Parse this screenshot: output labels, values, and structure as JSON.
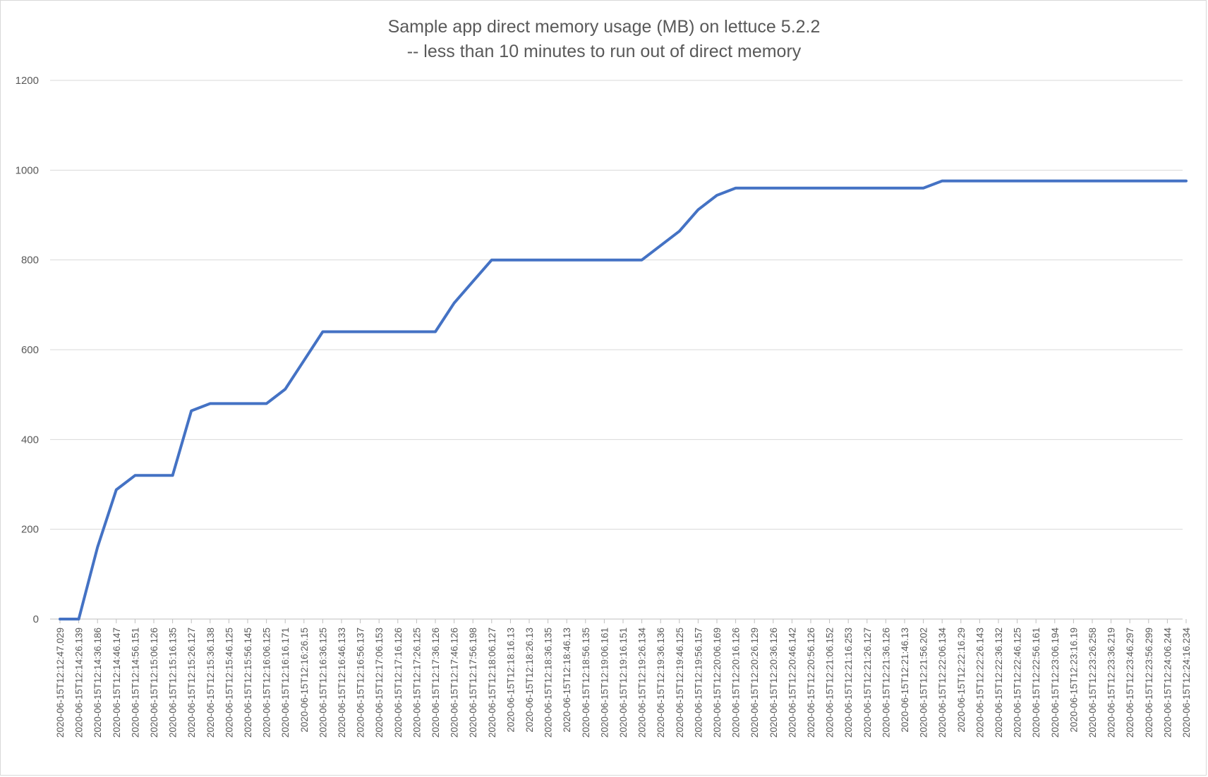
{
  "chart_data": {
    "type": "line",
    "title": "Sample app direct memory usage (MB) on lettuce 5.2.2",
    "subtitle": "-- less than 10 minutes to run out of direct memory",
    "xlabel": "",
    "ylabel": "",
    "ylim": [
      0,
      1200
    ],
    "yticks": [
      0,
      200,
      400,
      600,
      800,
      1000,
      1200
    ],
    "grid": true,
    "line_color": "#4472C4",
    "categories": [
      "2020-06-15T12:12:47.029",
      "2020-06-15T12:14:26.139",
      "2020-06-15T12:14:36.186",
      "2020-06-15T12:14:46.147",
      "2020-06-15T12:14:56.151",
      "2020-06-15T12:15:06.126",
      "2020-06-15T12:15:16.135",
      "2020-06-15T12:15:26.127",
      "2020-06-15T12:15:36.138",
      "2020-06-15T12:15:46.125",
      "2020-06-15T12:15:56.145",
      "2020-06-15T12:16:06.125",
      "2020-06-15T12:16:16.171",
      "2020-06-15T12:16:26.15",
      "2020-06-15T12:16:36.125",
      "2020-06-15T12:16:46.133",
      "2020-06-15T12:16:56.137",
      "2020-06-15T12:17:06.153",
      "2020-06-15T12:17:16.126",
      "2020-06-15T12:17:26.125",
      "2020-06-15T12:17:36.126",
      "2020-06-15T12:17:46.126",
      "2020-06-15T12:17:56.198",
      "2020-06-15T12:18:06.127",
      "2020-06-15T12:18:16.13",
      "2020-06-15T12:18:26.13",
      "2020-06-15T12:18:36.135",
      "2020-06-15T12:18:46.13",
      "2020-06-15T12:18:56.135",
      "2020-06-15T12:19:06.161",
      "2020-06-15T12:19:16.151",
      "2020-06-15T12:19:26.134",
      "2020-06-15T12:19:36.136",
      "2020-06-15T12:19:46.125",
      "2020-06-15T12:19:56.157",
      "2020-06-15T12:20:06.169",
      "2020-06-15T12:20:16.126",
      "2020-06-15T12:20:26.129",
      "2020-06-15T12:20:36.126",
      "2020-06-15T12:20:46.142",
      "2020-06-15T12:20:56.126",
      "2020-06-15T12:21:06.152",
      "2020-06-15T12:21:16.253",
      "2020-06-15T12:21:26.127",
      "2020-06-15T12:21:36.126",
      "2020-06-15T12:21:46.13",
      "2020-06-15T12:21:56.202",
      "2020-06-15T12:22:06.134",
      "2020-06-15T12:22:16.29",
      "2020-06-15T12:22:26.143",
      "2020-06-15T12:22:36.132",
      "2020-06-15T12:22:46.125",
      "2020-06-15T12:22:56.161",
      "2020-06-15T12:23:06.194",
      "2020-06-15T12:23:16.19",
      "2020-06-15T12:23:26.258",
      "2020-06-15T12:23:36.219",
      "2020-06-15T12:23:46.297",
      "2020-06-15T12:23:56.299",
      "2020-06-15T12:24:06.244",
      "2020-06-15T12:24:16.234"
    ],
    "series": [
      {
        "values": [
          0,
          0,
          160,
          288,
          320,
          320,
          320,
          464,
          480,
          480,
          480,
          480,
          512,
          576,
          640,
          640,
          640,
          640,
          640,
          640,
          640,
          704,
          752,
          800,
          800,
          800,
          800,
          800,
          800,
          800,
          800,
          800,
          832,
          864,
          912,
          944,
          960,
          960,
          960,
          960,
          960,
          960,
          960,
          960,
          960,
          960,
          960,
          976,
          976,
          976,
          976,
          976,
          976,
          976,
          976,
          976,
          976,
          976,
          976,
          976,
          976
        ]
      }
    ]
  }
}
